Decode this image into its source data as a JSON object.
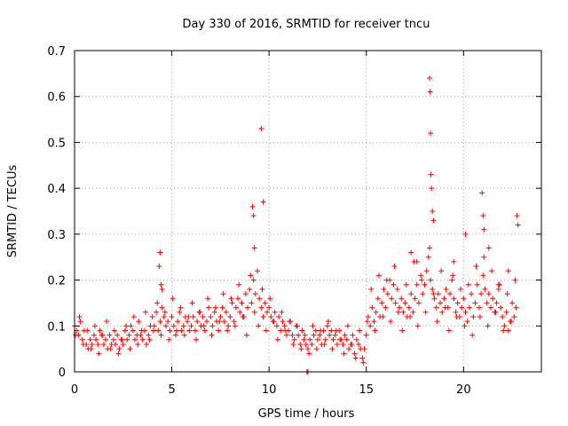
{
  "chart_data": {
    "type": "scatter",
    "title": "Day 330 of 2016, SRMTID for receiver tncu",
    "xlabel": "GPS time / hours",
    "ylabel": "SRMTID / TECUs",
    "xlim": [
      0,
      24
    ],
    "ylim": [
      0,
      0.7
    ],
    "grid": true,
    "marker": "+",
    "series_color": "#ff0000",
    "x_ticks": [
      {
        "value": 0,
        "label": "0"
      },
      {
        "value": 5,
        "label": "5"
      },
      {
        "value": 10,
        "label": "10"
      },
      {
        "value": 15,
        "label": "15"
      },
      {
        "value": 20,
        "label": "20"
      }
    ],
    "y_ticks": [
      {
        "value": 0,
        "label": "0"
      },
      {
        "value": 0.1,
        "label": "0.1"
      },
      {
        "value": 0.2,
        "label": "0.2"
      },
      {
        "value": 0.3,
        "label": "0.3"
      },
      {
        "value": 0.4,
        "label": "0.4"
      },
      {
        "value": 0.5,
        "label": "0.5"
      },
      {
        "value": 0.6,
        "label": "0.6"
      },
      {
        "value": 0.7,
        "label": "0.7"
      }
    ],
    "series": [
      {
        "name": "SRMTID",
        "x": [
          0.0,
          0.1,
          0.2,
          0.3,
          0.4,
          0.5,
          0.6,
          0.7,
          0.8,
          0.9,
          1.0,
          1.1,
          1.2,
          1.3,
          1.4,
          1.5,
          1.6,
          1.7,
          1.8,
          1.9,
          2.0,
          2.1,
          2.2,
          2.3,
          2.4,
          2.5,
          2.6,
          2.7,
          2.8,
          2.9,
          3.0,
          3.1,
          3.2,
          3.3,
          3.4,
          3.5,
          3.6,
          3.7,
          3.8,
          3.9,
          4.0,
          4.1,
          4.2,
          4.3,
          4.4,
          4.5,
          4.6,
          4.7,
          4.8,
          4.9,
          5.0,
          5.1,
          5.2,
          5.3,
          5.4,
          5.5,
          5.6,
          5.7,
          5.8,
          5.9,
          6.0,
          6.1,
          6.2,
          6.3,
          6.4,
          6.5,
          6.6,
          6.7,
          6.8,
          6.9,
          7.0,
          7.1,
          7.2,
          7.3,
          7.4,
          7.5,
          7.6,
          7.7,
          7.8,
          7.9,
          8.0,
          8.1,
          8.2,
          8.3,
          8.4,
          8.5,
          8.6,
          8.7,
          8.8,
          8.9,
          9.0,
          9.1,
          9.2,
          9.3,
          9.4,
          9.5,
          9.6,
          9.7,
          9.8,
          9.9,
          10.0,
          10.1,
          10.2,
          10.3,
          10.4,
          10.5,
          10.6,
          10.7,
          10.8,
          10.9,
          11.0,
          11.1,
          11.2,
          11.3,
          11.4,
          11.5,
          11.6,
          11.7,
          11.8,
          11.9,
          12.0,
          12.1,
          12.2,
          12.3,
          12.4,
          12.5,
          12.6,
          12.7,
          12.8,
          12.9,
          13.0,
          13.1,
          13.2,
          13.3,
          13.4,
          13.5,
          13.6,
          13.7,
          13.8,
          13.9,
          14.0,
          14.1,
          14.2,
          14.3,
          14.4,
          14.5,
          14.6,
          14.7,
          14.8,
          14.9,
          15.0,
          15.1,
          15.2,
          15.3,
          15.4,
          15.5,
          15.6,
          15.7,
          15.8,
          15.9,
          16.0,
          16.1,
          16.2,
          16.3,
          16.4,
          16.5,
          16.6,
          16.7,
          16.8,
          16.9,
          17.0,
          17.1,
          17.2,
          17.3,
          17.4,
          17.5,
          17.6,
          17.7,
          17.8,
          17.9,
          18.0,
          18.1,
          18.2,
          18.3,
          18.4,
          18.5,
          18.6,
          18.7,
          18.8,
          18.9,
          19.0,
          19.1,
          19.2,
          19.3,
          19.4,
          19.5,
          19.6,
          19.7,
          19.8,
          19.9,
          20.0,
          20.1,
          20.2,
          20.3,
          20.4,
          20.5,
          20.6,
          20.7,
          20.8,
          20.9,
          21.0,
          21.1,
          21.2,
          21.3,
          21.4,
          21.5,
          21.6,
          21.7,
          21.8,
          21.9,
          22.0,
          22.1,
          22.2,
          22.3,
          22.4,
          22.5,
          22.6,
          22.7,
          0.05,
          0.25,
          0.45,
          0.65,
          0.85,
          1.05,
          1.25,
          1.45,
          1.65,
          1.85,
          2.05,
          2.25,
          2.45,
          2.65,
          2.85,
          3.05,
          3.25,
          3.45,
          3.65,
          3.85,
          4.05,
          4.25,
          4.45,
          4.65,
          4.85,
          5.05,
          5.25,
          5.45,
          5.65,
          5.85,
          6.05,
          6.25,
          6.45,
          6.65,
          6.85,
          7.05,
          7.25,
          7.45,
          7.65,
          7.85,
          8.05,
          8.25,
          8.45,
          8.65,
          8.85,
          9.05,
          9.25,
          9.45,
          9.65,
          9.85,
          10.05,
          10.25,
          10.45,
          10.65,
          10.85,
          11.05,
          11.25,
          11.45,
          11.65,
          11.85,
          12.05,
          12.25,
          12.45,
          12.65,
          12.85,
          13.05,
          13.25,
          13.45,
          13.65,
          13.85,
          14.05,
          14.25,
          14.45,
          14.65,
          14.85,
          15.05,
          15.25,
          15.45,
          15.65,
          15.85,
          16.05,
          16.25,
          16.45,
          16.65,
          16.85,
          17.05,
          17.25,
          17.45,
          17.65,
          17.85,
          18.05,
          18.25,
          18.45,
          18.65,
          18.85,
          19.05,
          19.25,
          19.45,
          19.65,
          19.85,
          20.05,
          20.25,
          20.45,
          20.65,
          20.85,
          21.05,
          21.25,
          21.45,
          21.65,
          21.85,
          22.05,
          22.25,
          22.45,
          22.65,
          4.35,
          4.4,
          4.45,
          9.15,
          9.2,
          9.25,
          9.6,
          9.7,
          18.25,
          18.28,
          18.3,
          18.32,
          18.35,
          18.4,
          18.45,
          20.95,
          21.0,
          21.05,
          22.75,
          22.8,
          11.95,
          12.0,
          4.5,
          17.3,
          17.6,
          19.5,
          20.1,
          21.3,
          21.8,
          22.3
        ],
        "y": [
          0.1,
          0.09,
          0.08,
          0.11,
          0.07,
          0.09,
          0.06,
          0.05,
          0.07,
          0.06,
          0.08,
          0.07,
          0.06,
          0.09,
          0.08,
          0.06,
          0.07,
          0.05,
          0.08,
          0.06,
          0.07,
          0.06,
          0.08,
          0.05,
          0.07,
          0.06,
          0.09,
          0.07,
          0.08,
          0.1,
          0.09,
          0.07,
          0.08,
          0.11,
          0.08,
          0.07,
          0.09,
          0.06,
          0.08,
          0.1,
          0.12,
          0.1,
          0.13,
          0.09,
          0.11,
          0.14,
          0.12,
          0.1,
          0.11,
          0.09,
          0.12,
          0.1,
          0.08,
          0.11,
          0.13,
          0.09,
          0.1,
          0.12,
          0.11,
          0.09,
          0.1,
          0.12,
          0.09,
          0.11,
          0.13,
          0.1,
          0.12,
          0.09,
          0.11,
          0.14,
          0.12,
          0.1,
          0.13,
          0.11,
          0.09,
          0.12,
          0.14,
          0.11,
          0.13,
          0.1,
          0.12,
          0.15,
          0.11,
          0.14,
          0.16,
          0.13,
          0.15,
          0.12,
          0.17,
          0.14,
          0.18,
          0.15,
          0.2,
          0.17,
          0.22,
          0.16,
          0.14,
          0.12,
          0.15,
          0.13,
          0.14,
          0.12,
          0.11,
          0.13,
          0.1,
          0.12,
          0.09,
          0.11,
          0.1,
          0.08,
          0.09,
          0.11,
          0.08,
          0.07,
          0.1,
          0.08,
          0.06,
          0.09,
          0.07,
          0.06,
          0.05,
          0.07,
          0.06,
          0.08,
          0.09,
          0.07,
          0.08,
          0.06,
          0.09,
          0.07,
          0.1,
          0.08,
          0.09,
          0.07,
          0.08,
          0.06,
          0.09,
          0.07,
          0.06,
          0.08,
          0.07,
          0.05,
          0.06,
          0.08,
          0.04,
          0.07,
          0.06,
          0.05,
          0.03,
          0.05,
          0.08,
          0.12,
          0.1,
          0.14,
          0.11,
          0.13,
          0.16,
          0.12,
          0.15,
          0.18,
          0.14,
          0.17,
          0.2,
          0.16,
          0.19,
          0.15,
          0.18,
          0.14,
          0.16,
          0.13,
          0.15,
          0.12,
          0.14,
          0.17,
          0.13,
          0.16,
          0.19,
          0.15,
          0.21,
          0.17,
          0.19,
          0.22,
          0.25,
          0.2,
          0.18,
          0.16,
          0.14,
          0.17,
          0.15,
          0.13,
          0.16,
          0.18,
          0.14,
          0.17,
          0.2,
          0.16,
          0.13,
          0.15,
          0.12,
          0.14,
          0.16,
          0.13,
          0.11,
          0.14,
          0.17,
          0.12,
          0.15,
          0.19,
          0.14,
          0.17,
          0.21,
          0.18,
          0.15,
          0.17,
          0.14,
          0.16,
          0.13,
          0.15,
          0.18,
          0.14,
          0.12,
          0.1,
          0.13,
          0.09,
          0.11,
          0.15,
          0.12,
          0.14,
          0.08,
          0.12,
          0.06,
          0.09,
          0.05,
          0.1,
          0.04,
          0.08,
          0.11,
          0.05,
          0.09,
          0.04,
          0.07,
          0.1,
          0.05,
          0.12,
          0.06,
          0.09,
          0.13,
          0.07,
          0.09,
          0.15,
          0.08,
          0.13,
          0.07,
          0.16,
          0.09,
          0.14,
          0.08,
          0.12,
          0.15,
          0.07,
          0.13,
          0.1,
          0.16,
          0.08,
          0.14,
          0.11,
          0.17,
          0.09,
          0.16,
          0.1,
          0.19,
          0.12,
          0.08,
          0.21,
          0.13,
          0.1,
          0.18,
          0.09,
          0.16,
          0.11,
          0.07,
          0.13,
          0.09,
          0.11,
          0.06,
          0.1,
          0.05,
          0.08,
          0.04,
          0.1,
          0.05,
          0.09,
          0.06,
          0.11,
          0.05,
          0.09,
          0.07,
          0.04,
          0.1,
          0.06,
          0.03,
          0.09,
          0.02,
          0.11,
          0.18,
          0.09,
          0.21,
          0.12,
          0.2,
          0.11,
          0.23,
          0.13,
          0.09,
          0.19,
          0.12,
          0.24,
          0.1,
          0.2,
          0.13,
          0.27,
          0.17,
          0.11,
          0.22,
          0.14,
          0.09,
          0.21,
          0.12,
          0.18,
          0.1,
          0.19,
          0.08,
          0.23,
          0.12,
          0.25,
          0.1,
          0.22,
          0.13,
          0.19,
          0.09,
          0.17,
          0.11,
          0.2,
          0.23,
          0.26,
          0.19,
          0.36,
          0.34,
          0.27,
          0.53,
          0.37,
          0.64,
          0.61,
          0.52,
          0.43,
          0.4,
          0.35,
          0.33,
          0.39,
          0.34,
          0.31,
          0.34,
          0.32,
          0.0,
          0.0,
          0.18,
          0.26,
          0.24,
          0.24,
          0.3,
          0.27,
          0.19,
          0.22
        ]
      }
    ]
  }
}
